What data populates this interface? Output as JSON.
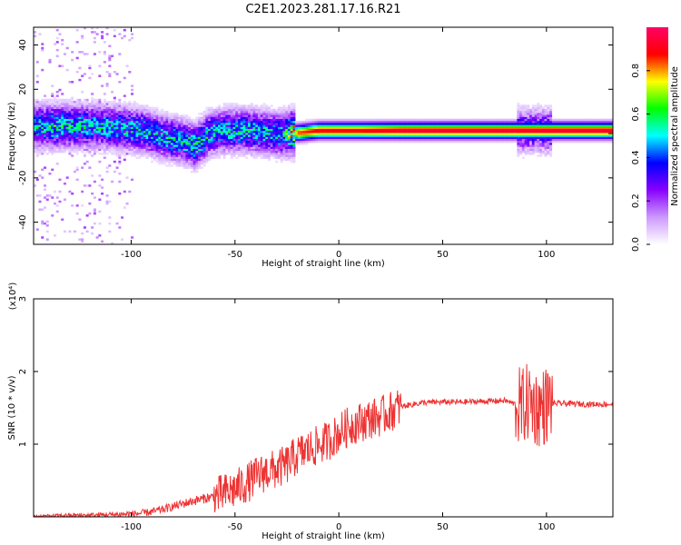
{
  "figure_title": "C2E1.2023.281.17.16.R21",
  "chart_data": [
    {
      "type": "heatmap",
      "title": "C2E1.2023.281.17.16.R21",
      "xlabel": "Height of straight line (km)",
      "ylabel": "Frequency (Hz)",
      "xlim": [
        -147,
        132
      ],
      "ylim": [
        -50,
        48
      ],
      "x_ticks": [
        -100,
        -50,
        0,
        50,
        100
      ],
      "y_ticks": [
        -40,
        -20,
        0,
        20,
        40
      ],
      "x_tick_labels": [
        "-100",
        "-50",
        "0",
        "50",
        "100"
      ],
      "y_tick_labels": [
        "-40",
        "-20",
        "0",
        "20",
        "40"
      ],
      "grid": false,
      "colorbar": {
        "label": "Normalized spectral amplitude",
        "range": [
          0,
          1
        ],
        "ticks": [
          0.0,
          0.2,
          0.4,
          0.6,
          0.8
        ],
        "tick_labels": [
          "0.0",
          "0.2",
          "0.4",
          "0.6",
          "0.8"
        ],
        "colormap": [
          "#ffffff",
          "#cc99ff",
          "#8800ff",
          "#0000ff",
          "#00ffff",
          "#00ff00",
          "#ffff00",
          "#ff0000",
          "#ff0066"
        ]
      },
      "ridge": {
        "x": [
          -147,
          -135,
          -120,
          -105,
          -95,
          -85,
          -75,
          -70,
          -62,
          -55,
          -45,
          -35,
          -28,
          -24,
          -20,
          -10,
          0,
          10,
          30,
          50,
          70,
          85,
          95,
          100,
          110,
          132
        ],
        "y": [
          3,
          3,
          3,
          2,
          1,
          -2,
          -4,
          -6,
          0,
          1,
          1,
          0,
          -1,
          0,
          0,
          1,
          1,
          1,
          1,
          1,
          1,
          1,
          1,
          1,
          1,
          1
        ],
        "amplitude": [
          0.45,
          0.5,
          0.45,
          0.45,
          0.45,
          0.45,
          0.45,
          0.5,
          0.45,
          0.45,
          0.45,
          0.45,
          0.45,
          0.6,
          0.85,
          0.9,
          0.9,
          0.9,
          0.95,
          0.95,
          0.95,
          0.95,
          0.95,
          0.95,
          0.95,
          0.95
        ]
      }
    },
    {
      "type": "line",
      "xlabel": "Height of straight line (km)",
      "ylabel": "SNR (10 * v/v)",
      "y_scale_label": "(x10⁴)",
      "xlim": [
        -147,
        132
      ],
      "ylim": [
        0,
        3
      ],
      "x_ticks": [
        -100,
        -50,
        0,
        50,
        100
      ],
      "y_ticks": [
        1,
        2,
        3
      ],
      "x_tick_labels": [
        "-100",
        "-50",
        "0",
        "50",
        "100"
      ],
      "y_tick_labels": [
        "1",
        "2",
        "3"
      ],
      "grid": false,
      "series": [
        {
          "color": "#ee3333",
          "x": [
            -147,
            -140,
            -130,
            -120,
            -110,
            -100,
            -95,
            -90,
            -85,
            -80,
            -75,
            -70,
            -65,
            -60,
            -55,
            -50,
            -45,
            -40,
            -35,
            -30,
            -25,
            -20,
            -15,
            -10,
            -5,
            0,
            5,
            10,
            15,
            20,
            25,
            30,
            40,
            50,
            60,
            70,
            80,
            85,
            88,
            90,
            92,
            95,
            98,
            100,
            102,
            105,
            110,
            120,
            132
          ],
          "y": [
            0.01,
            0.01,
            0.02,
            0.02,
            0.03,
            0.04,
            0.05,
            0.07,
            0.1,
            0.14,
            0.18,
            0.22,
            0.25,
            0.28,
            0.32,
            0.38,
            0.45,
            0.55,
            0.62,
            0.65,
            0.72,
            0.85,
            0.92,
            0.98,
            1.05,
            1.15,
            1.25,
            1.3,
            1.35,
            1.38,
            1.45,
            1.52,
            1.57,
            1.58,
            1.58,
            1.59,
            1.6,
            1.55,
            1.5,
            1.55,
            1.6,
            1.5,
            1.5,
            1.55,
            1.56,
            1.56,
            1.56,
            1.55,
            1.55
          ]
        }
      ]
    }
  ]
}
